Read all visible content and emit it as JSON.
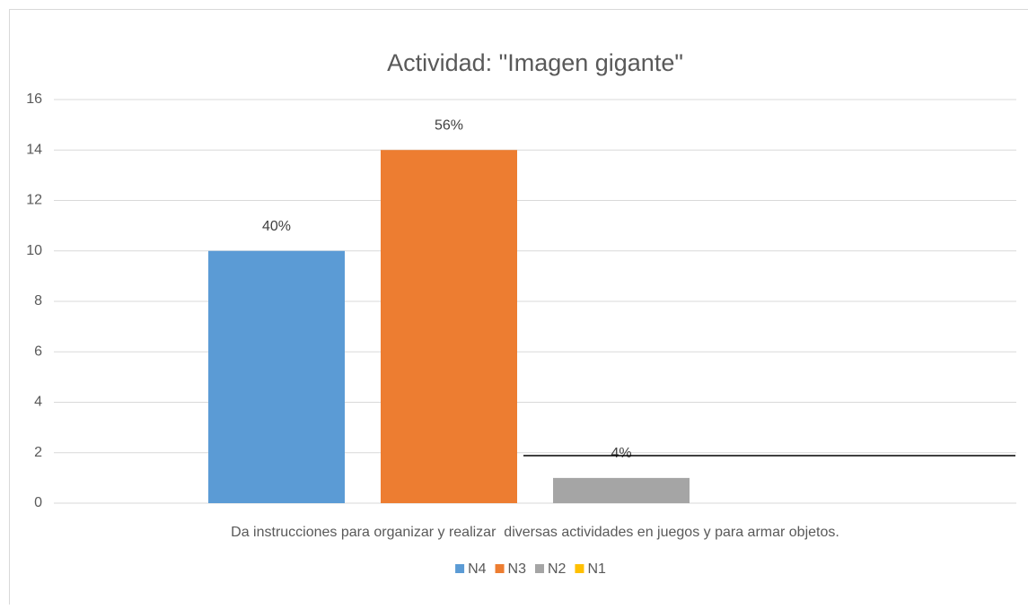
{
  "chart_data": {
    "type": "bar",
    "title": "Actividad: \"Imagen gigante\"",
    "categories": [
      "Da instrucciones para organizar y realizar  diversas actividades en juegos y para armar objetos."
    ],
    "series": [
      {
        "name": "N4",
        "color": "#5b9bd5",
        "values": [
          10
        ],
        "value_labels": [
          "40%"
        ]
      },
      {
        "name": "N3",
        "color": "#ed7d31",
        "values": [
          14
        ],
        "value_labels": [
          "56%"
        ]
      },
      {
        "name": "N2",
        "color": "#a5a5a5",
        "values": [
          1
        ],
        "value_labels": [
          "4%"
        ]
      },
      {
        "name": "N1",
        "color": "#ffc000",
        "values": [
          0
        ]
      }
    ],
    "ylim": [
      0,
      16
    ],
    "yticks": [
      0,
      2,
      4,
      6,
      8,
      10,
      12,
      14,
      16
    ],
    "grid": true,
    "legend": "bottom"
  }
}
